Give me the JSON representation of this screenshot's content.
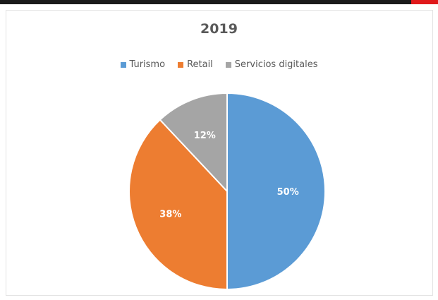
{
  "chart_data": {
    "type": "pie",
    "title": "2019",
    "categories": [
      "Turismo",
      "Retail",
      "Servicios digitales"
    ],
    "values": [
      50,
      38,
      12
    ],
    "value_labels": [
      "50%",
      "38%",
      "12%"
    ],
    "colors": [
      "#5b9bd5",
      "#ed7d31",
      "#a5a5a5"
    ],
    "legend_position": "top",
    "start_angle_deg": 0,
    "direction": "clockwise"
  }
}
